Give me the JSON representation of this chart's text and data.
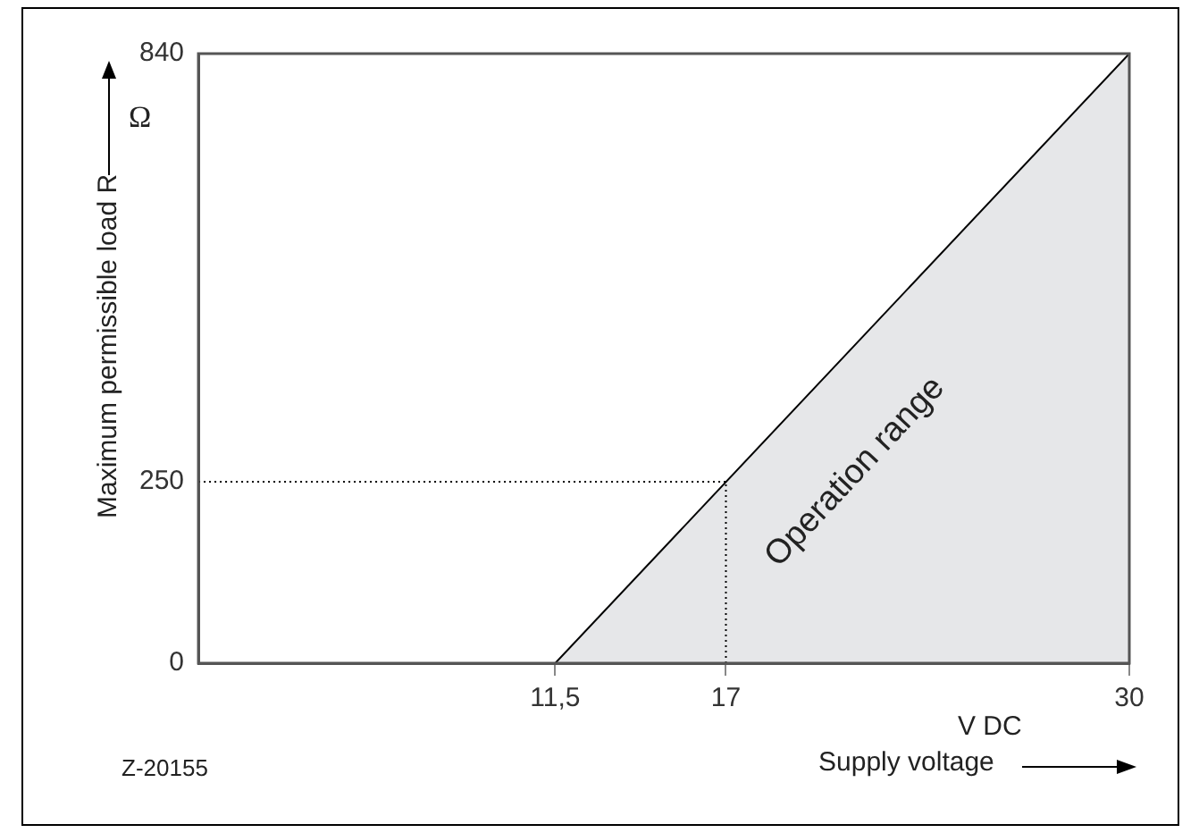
{
  "chart_data": {
    "type": "area",
    "xlabel": "Supply voltage",
    "ylabel": "Maximum permissible load R",
    "annotations": [
      "Ω",
      "V DC",
      "Z-20155",
      "Operation range"
    ],
    "series": [
      {
        "x": [
          11.5,
          30
        ],
        "values": [
          0,
          840
        ],
        "color": "#e6e7e9"
      }
    ],
    "xlim": [
      0,
      30
    ],
    "xticks": [
      {
        "value": 11.5,
        "label": "11,5"
      },
      17,
      30
    ],
    "ylim": [
      0,
      840
    ],
    "yticks": [
      0,
      250,
      840
    ],
    "ref_lines": [
      {
        "axis": "x",
        "value": 17,
        "line_style": "dotted"
      },
      {
        "axis": "y",
        "value": 250,
        "line_style": "dotted"
      }
    ],
    "grid": false,
    "legend": false
  }
}
